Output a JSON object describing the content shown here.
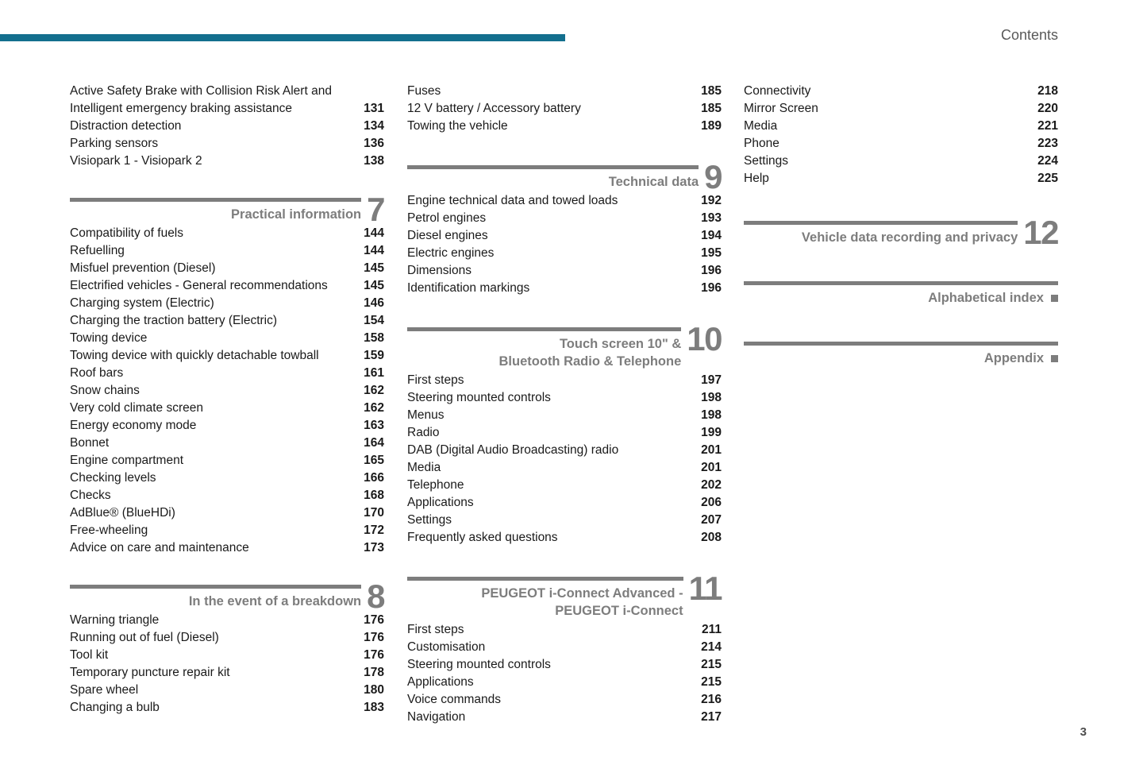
{
  "page": {
    "header_label": "Contents",
    "page_number": "3"
  },
  "colors": {
    "accent_teal": "#136f8e",
    "section_gray": "#7d7d7d",
    "text_dark": "#1a1a1a"
  },
  "columns": [
    {
      "sections": [
        {
          "entries": [
            {
              "label": "Active Safety Brake with Collision Risk Alert and",
              "page": ""
            },
            {
              "label": "Intelligent emergency braking assistance",
              "page": "131"
            },
            {
              "label": "Distraction detection",
              "page": "134"
            },
            {
              "label": "Parking sensors",
              "page": "136"
            },
            {
              "label": "Visiopark 1 - Visiopark 2",
              "page": "138"
            }
          ]
        },
        {
          "header": {
            "lines": [
              "Practical information"
            ],
            "number": "7"
          },
          "entries": [
            {
              "label": "Compatibility of fuels",
              "page": "144"
            },
            {
              "label": "Refuelling",
              "page": "144"
            },
            {
              "label": "Misfuel prevention (Diesel)",
              "page": "145"
            },
            {
              "label": "Electrified vehicles - General recommendations",
              "page": "145"
            },
            {
              "label": "Charging system (Electric)",
              "page": "146"
            },
            {
              "label": "Charging the traction battery (Electric)",
              "page": "154"
            },
            {
              "label": "Towing device",
              "page": "158"
            },
            {
              "label": "Towing device with quickly detachable towball",
              "page": "159"
            },
            {
              "label": "Roof bars",
              "page": "161"
            },
            {
              "label": "Snow chains",
              "page": "162"
            },
            {
              "label": "Very cold climate screen",
              "page": "162"
            },
            {
              "label": "Energy economy mode",
              "page": "163"
            },
            {
              "label": "Bonnet",
              "page": "164"
            },
            {
              "label": "Engine compartment",
              "page": "165"
            },
            {
              "label": "Checking levels",
              "page": "166"
            },
            {
              "label": "Checks",
              "page": "168"
            },
            {
              "label": "AdBlue® (BlueHDi)",
              "page": "170"
            },
            {
              "label": "Free-wheeling",
              "page": "172"
            },
            {
              "label": "Advice on care and maintenance",
              "page": "173"
            }
          ]
        },
        {
          "header": {
            "lines": [
              "In the event of a breakdown"
            ],
            "number": "8"
          },
          "entries": [
            {
              "label": "Warning triangle",
              "page": "176"
            },
            {
              "label": "Running out of fuel (Diesel)",
              "page": "176"
            },
            {
              "label": "Tool kit",
              "page": "176"
            },
            {
              "label": "Temporary puncture repair kit",
              "page": "178"
            },
            {
              "label": "Spare wheel",
              "page": "180"
            },
            {
              "label": "Changing a bulb",
              "page": "183"
            }
          ]
        }
      ]
    },
    {
      "sections": [
        {
          "entries": [
            {
              "label": "Fuses",
              "page": "185"
            },
            {
              "label": "12 V battery / Accessory battery",
              "page": "185"
            },
            {
              "label": "Towing the vehicle",
              "page": "189"
            }
          ]
        },
        {
          "header": {
            "lines": [
              "Technical data"
            ],
            "number": "9"
          },
          "entries": [
            {
              "label": "Engine technical data and towed loads",
              "page": "192"
            },
            {
              "label": "Petrol engines",
              "page": "193"
            },
            {
              "label": "Diesel engines",
              "page": "194"
            },
            {
              "label": "Electric engines",
              "page": "195"
            },
            {
              "label": "Dimensions",
              "page": "196"
            },
            {
              "label": "Identification markings",
              "page": "196"
            }
          ]
        },
        {
          "header": {
            "lines": [
              "Touch screen 10\" &",
              "Bluetooth Radio & Telephone"
            ],
            "number": "10"
          },
          "entries": [
            {
              "label": "First steps",
              "page": "197"
            },
            {
              "label": "Steering mounted controls",
              "page": "198"
            },
            {
              "label": "Menus",
              "page": "198"
            },
            {
              "label": "Radio",
              "page": "199"
            },
            {
              "label": "DAB (Digital Audio Broadcasting) radio",
              "page": "201"
            },
            {
              "label": "Media",
              "page": "201"
            },
            {
              "label": "Telephone",
              "page": "202"
            },
            {
              "label": "Applications",
              "page": "206"
            },
            {
              "label": "Settings",
              "page": "207"
            },
            {
              "label": "Frequently asked questions",
              "page": "208"
            }
          ]
        },
        {
          "header": {
            "lines": [
              "PEUGEOT i-Connect Advanced -",
              "PEUGEOT i-Connect"
            ],
            "number": "11"
          },
          "entries": [
            {
              "label": "First steps",
              "page": "211"
            },
            {
              "label": "Customisation",
              "page": "214"
            },
            {
              "label": "Steering mounted controls",
              "page": "215"
            },
            {
              "label": "Applications",
              "page": "215"
            },
            {
              "label": "Voice commands",
              "page": "216"
            },
            {
              "label": "Navigation",
              "page": "217"
            }
          ]
        }
      ]
    },
    {
      "sections": [
        {
          "entries": [
            {
              "label": "Connectivity",
              "page": "218"
            },
            {
              "label": "Mirror Screen",
              "page": "220"
            },
            {
              "label": "Media",
              "page": "221"
            },
            {
              "label": "Phone",
              "page": "223"
            },
            {
              "label": "Settings",
              "page": "224"
            },
            {
              "label": "Help",
              "page": "225"
            }
          ]
        },
        {
          "header": {
            "lines": [
              "Vehicle data recording and privacy"
            ],
            "number": "12"
          },
          "entries": []
        },
        {
          "header": {
            "lines": [
              "Alphabetical index"
            ],
            "square": true
          },
          "entries": []
        },
        {
          "header": {
            "lines": [
              "Appendix"
            ],
            "square": true
          },
          "entries": []
        }
      ]
    }
  ]
}
